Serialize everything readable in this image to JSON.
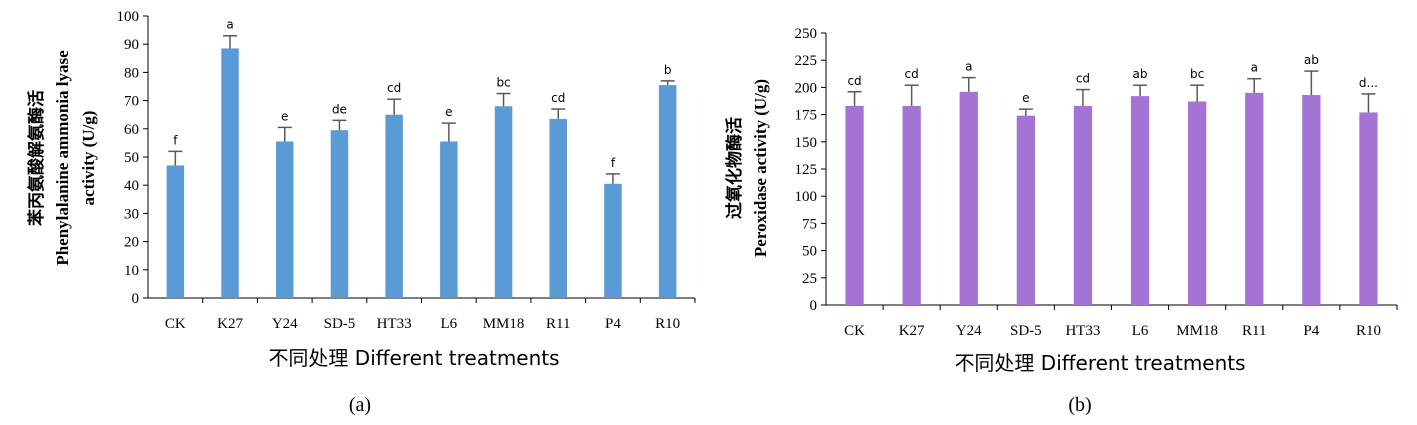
{
  "chart_data": [
    {
      "type": "bar",
      "panel_label": "(a)",
      "categories": [
        "CK",
        "K27",
        "Y24",
        "SD-5",
        "HT33",
        "L6",
        "MM18",
        "R11",
        "P4",
        "R10"
      ],
      "values": [
        47,
        88.5,
        55.5,
        59.5,
        65,
        55.5,
        68,
        63.5,
        40.5,
        75.5
      ],
      "errors": [
        5,
        4.5,
        5,
        3.5,
        5.5,
        6.5,
        4.5,
        3.5,
        3.5,
        1.5
      ],
      "letters": [
        "f",
        "a",
        "e",
        "de",
        "cd",
        "e",
        "bc",
        "cd",
        "f",
        "b"
      ],
      "xlabel": "不同处理 Different treatments",
      "ylabel_lines": [
        "苯丙氨酸解氨酶活",
        "Phenylalanine ammonia lyase",
        "activity (U/g)"
      ],
      "ylim": [
        0,
        100
      ],
      "yticks": [
        0,
        10,
        20,
        30,
        40,
        50,
        60,
        70,
        80,
        90,
        100
      ],
      "color": "#5b9bd5",
      "grid": false,
      "legend": "none"
    },
    {
      "type": "bar",
      "panel_label": "(b)",
      "categories": [
        "CK",
        "K27",
        "Y24",
        "SD-5",
        "HT33",
        "L6",
        "MM18",
        "R11",
        "P4",
        "R10"
      ],
      "values": [
        183,
        183,
        196,
        174,
        183,
        192,
        187,
        195,
        193,
        177
      ],
      "errors": [
        13,
        19,
        13,
        6,
        15,
        10,
        15,
        13,
        22,
        17
      ],
      "letters": [
        "cd",
        "cd",
        "a",
        "e",
        "cd",
        "ab",
        "bc",
        "a",
        "ab",
        "d..."
      ],
      "xlabel": "不同处理 Different treatments",
      "ylabel_lines": [
        "过氧化物酶活",
        "Peroxidase activity (U/g)"
      ],
      "ylim": [
        0,
        250
      ],
      "yticks": [
        0,
        25,
        50,
        75,
        100,
        125,
        150,
        175,
        200,
        225,
        250
      ],
      "color": "#a374d6",
      "grid": false,
      "legend": "none"
    }
  ]
}
